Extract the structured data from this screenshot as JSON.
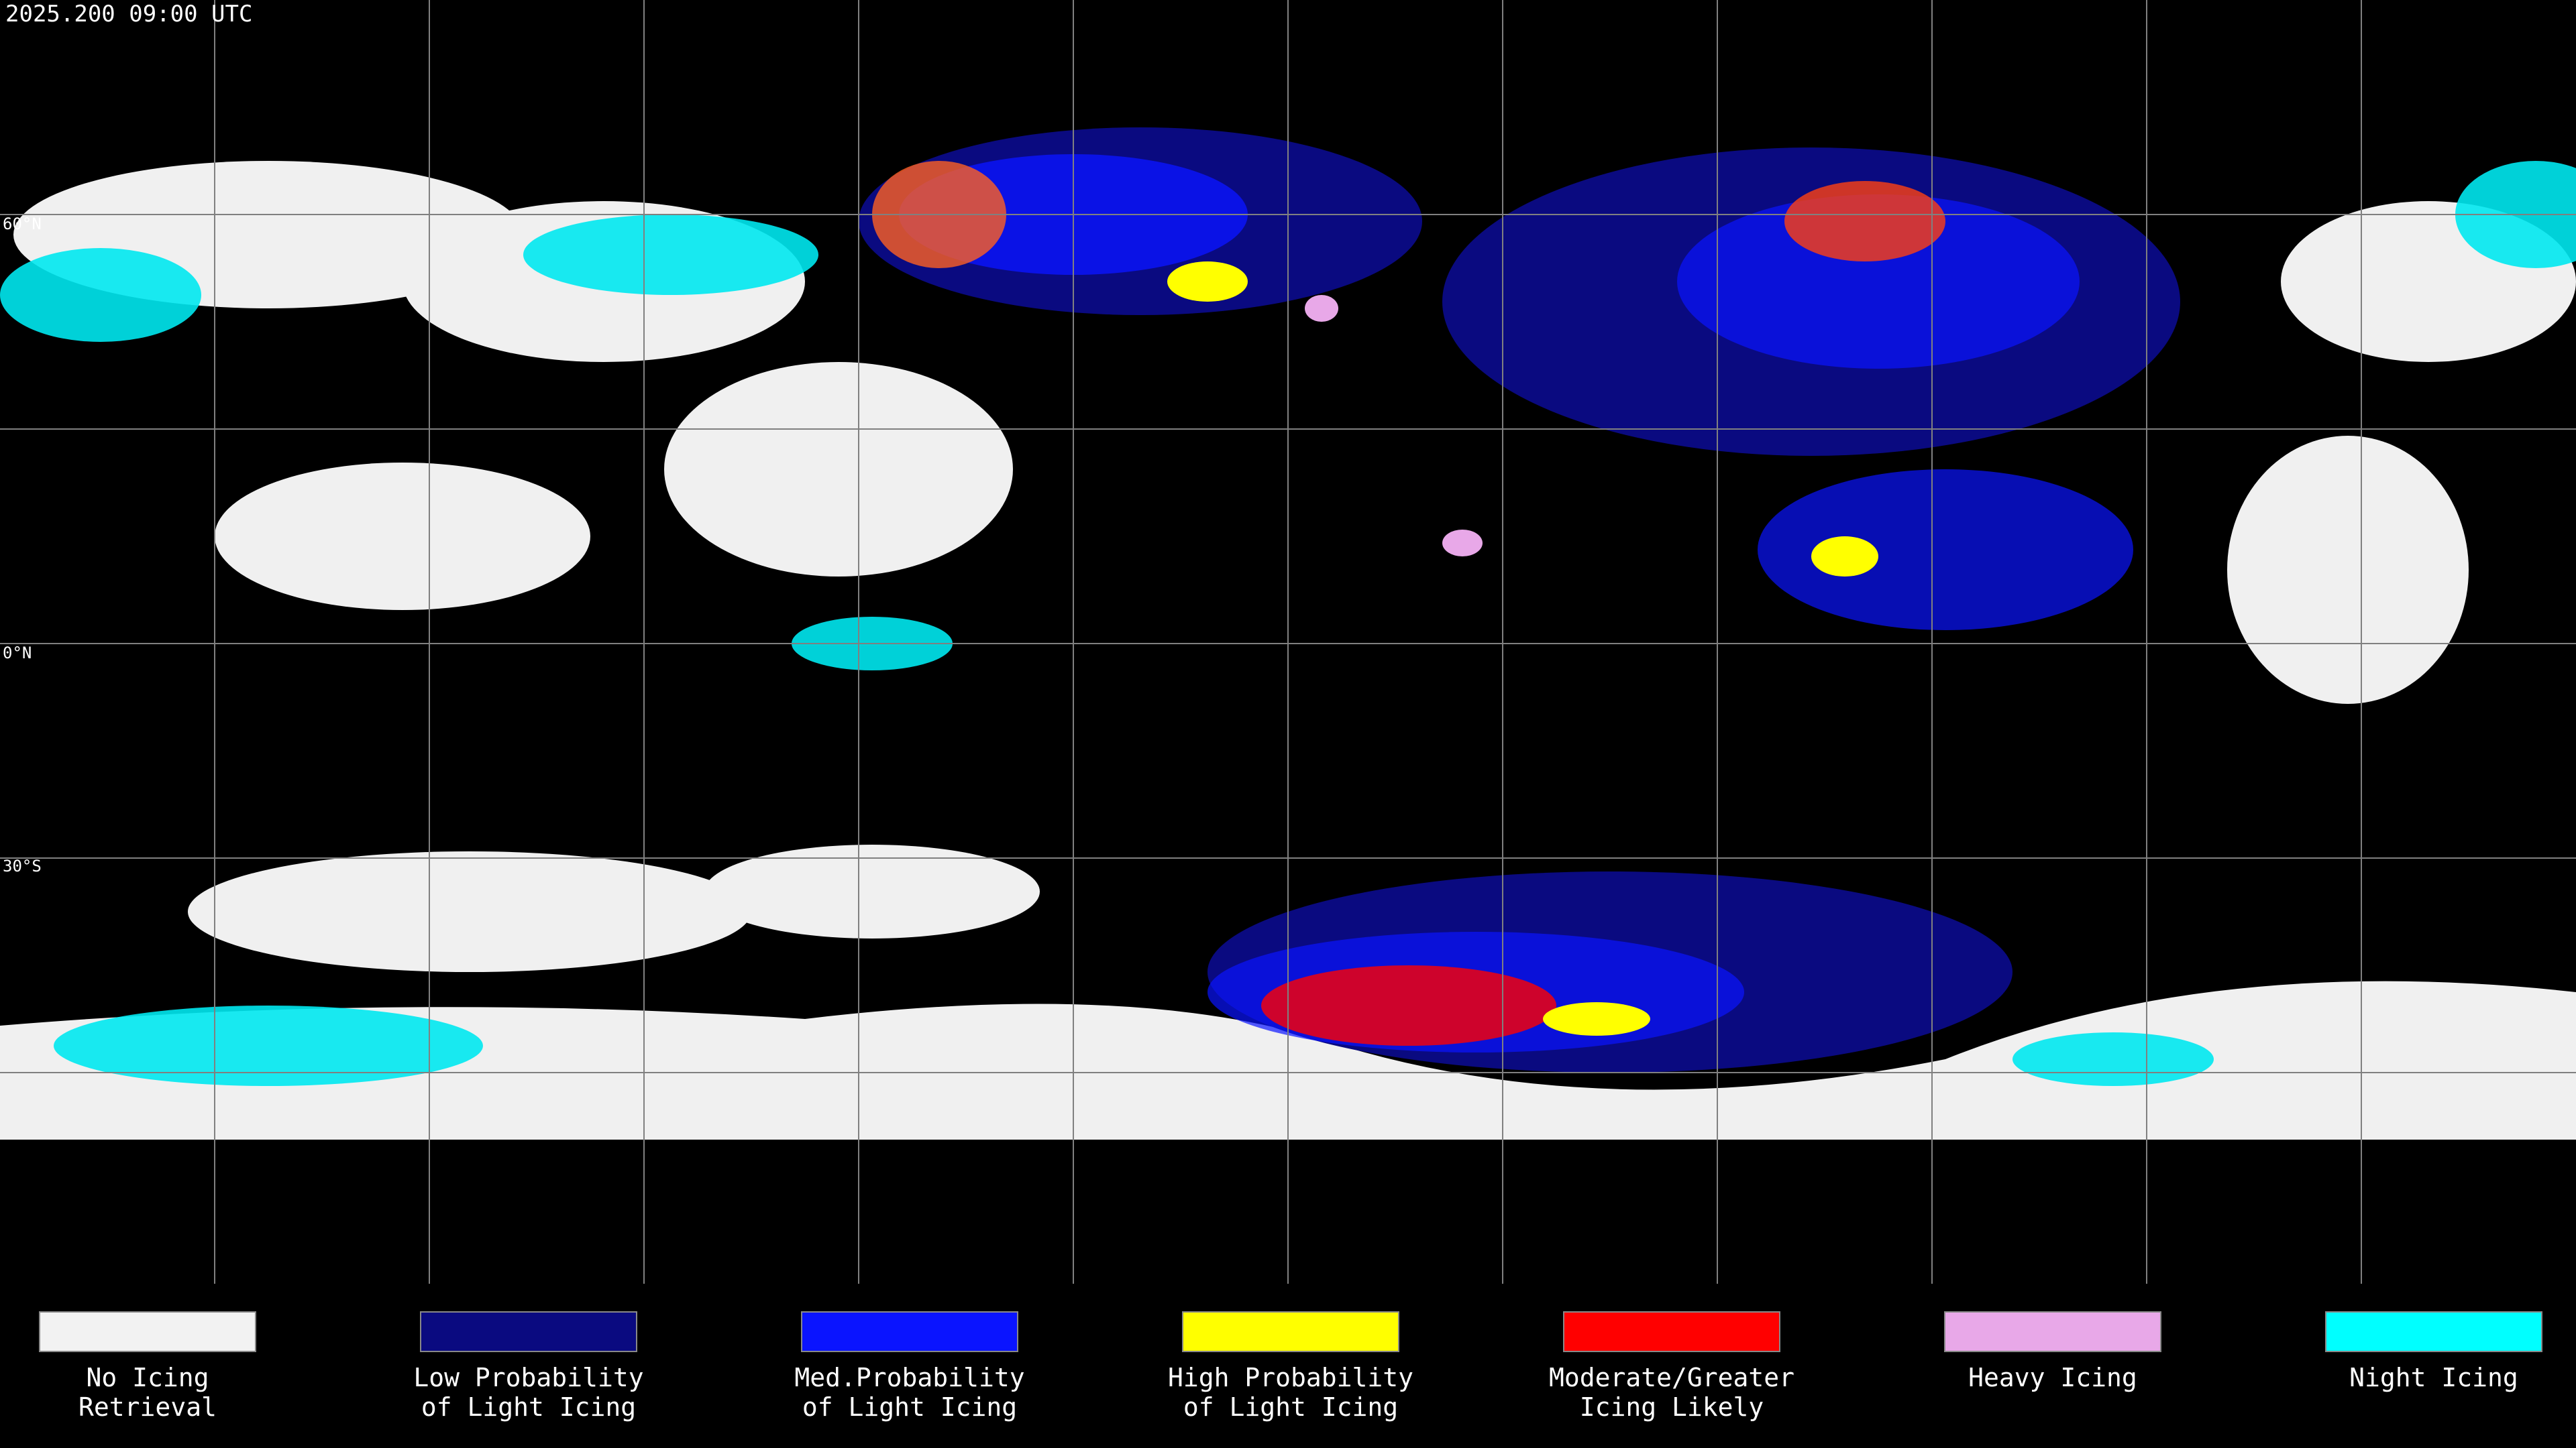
{
  "header": {
    "title": "2025.200 09:00 UTC"
  },
  "map": {
    "lat_labels": [
      "60°N",
      "0°N",
      "30°S"
    ]
  },
  "legend": [
    {
      "color": "#f2f2f2",
      "label": [
        "No Icing",
        "Retrieval"
      ]
    },
    {
      "color": "#0a0a80",
      "label": [
        "Low Probability",
        "of Light Icing"
      ]
    },
    {
      "color": "#0a14ff",
      "label": [
        "Med.Probability",
        "of Light Icing"
      ]
    },
    {
      "color": "#ffff00",
      "label": [
        "High Probability",
        "of Light Icing"
      ]
    },
    {
      "color": "#ff0000",
      "label": [
        "Moderate/Greater",
        "Icing Likely"
      ]
    },
    {
      "color": "#e8a8e8",
      "label": [
        "Heavy Icing"
      ]
    },
    {
      "color": "#00ffff",
      "label": [
        "Night Icing"
      ]
    }
  ]
}
